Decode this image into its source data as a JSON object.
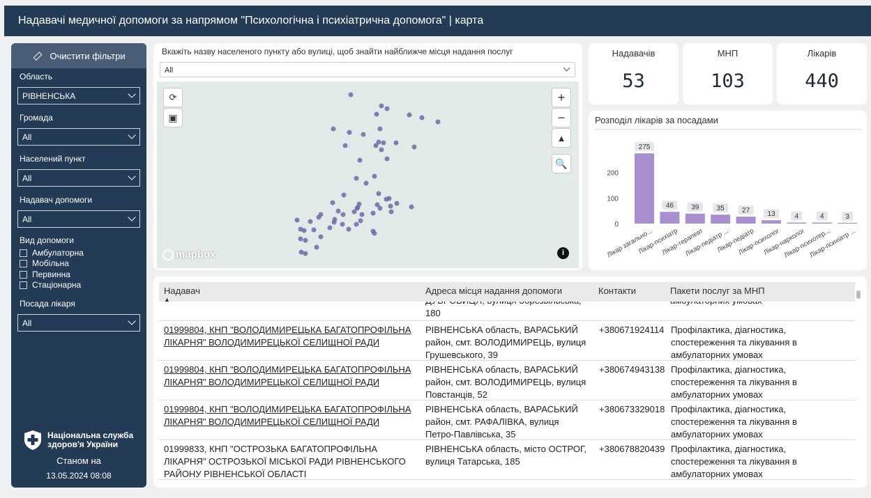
{
  "header": {
    "title": "Надавачі медичної допомоги за напрямом \"Психологічна і психіатрична допомога\" | карта"
  },
  "sidebar": {
    "clear_filters": "Очистити фільтри",
    "filters": [
      {
        "label": "Область",
        "value": "РІВНЕНСЬКА"
      },
      {
        "label": "Громада",
        "value": "All"
      },
      {
        "label": "Населений пункт",
        "value": "All"
      },
      {
        "label": "Надавач допомоги",
        "value": "All"
      }
    ],
    "care_type": {
      "label": "Вид допомоги",
      "options": [
        "Амбулаторна",
        "Мобільна",
        "Первинна",
        "Стаціонарна"
      ]
    },
    "position": {
      "label": "Посада лікаря",
      "value": "All"
    },
    "org_name_line1": "Національна служба",
    "org_name_line2": "здоров'я України",
    "as_of_label": "Станом на",
    "as_of_date": "13.05.2024 08:08"
  },
  "search": {
    "hint": "Вкажіть назву населеного пункту або вулиці, щоб знайти найближче місця надання послуг",
    "value": "All"
  },
  "map": {
    "logo_text": "mapbox"
  },
  "kpis": [
    {
      "label": "Надавачів",
      "value": "53"
    },
    {
      "label": "МНП",
      "value": "103"
    },
    {
      "label": "Лікарів",
      "value": "440"
    }
  ],
  "chart_data": {
    "type": "bar",
    "title": "Розподіл лікарів за посадами",
    "categories": [
      "Лікар загально...",
      "Лікар-психіатр",
      "Лікар-терапевт",
      "Лікар-педіатр ...",
      "Лікар-педіатр",
      "Лікар-психолог",
      "Лікар-нарколог",
      "Лікар-психотер...",
      "Лікар-психіатр ..."
    ],
    "values": [
      275,
      46,
      39,
      35,
      27,
      13,
      4,
      4,
      3
    ],
    "y_ticks": [
      0,
      100,
      200
    ],
    "ylim": [
      0,
      300
    ],
    "bar_color": "#a98fcf",
    "grid": false
  },
  "table": {
    "headers": [
      "Надавач",
      "Адреса місця надання допомоги",
      "Контакти",
      "Пакети послуг за МНП"
    ],
    "partial_row": {
      "address_line1": "ДУБРОВИЦЯ, вулиця Зорезвільська,",
      "address_line2": "180",
      "package_line": "амбулаторних умовах"
    },
    "rows": [
      {
        "provider1": "01999804, КНП \"ВОЛОДИМИРЕЦЬКА БАГАТОПРОФІЛЬНА",
        "provider2": "ЛІКАРНЯ\" ВОЛОДИМИРЕЦЬКОЇ СЕЛИЩНОЇ РАДИ",
        "provider3": "",
        "address1": "РІВНЕНСЬКА область, ВАРАСЬКИЙ",
        "address2": "район, смт. ВОЛОДИМИРЕЦЬ, вулиця",
        "address3": "Грушевського, 39",
        "contact": "+380671924114",
        "pkg1": "Профілактика, діагностика,",
        "pkg2": "спостереження та лікування в",
        "pkg3": "амбулаторних умовах",
        "link": true
      },
      {
        "provider1": "01999804, КНП \"ВОЛОДИМИРЕЦЬКА БАГАТОПРОФІЛЬНА",
        "provider2": "ЛІКАРНЯ\" ВОЛОДИМИРЕЦЬКОЇ СЕЛИЩНОЇ РАДИ",
        "provider3": "",
        "address1": "РІВНЕНСЬКА область, ВАРАСЬКИЙ",
        "address2": "район, смт. ВОЛОДИМИРЕЦЬ, вулиця",
        "address3": "Повстанців, 52",
        "contact": "+380674943138",
        "pkg1": "Профілактика, діагностика,",
        "pkg2": "спостереження та лікування в",
        "pkg3": "амбулаторних умовах",
        "link": true
      },
      {
        "provider1": "01999804, КНП \"ВОЛОДИМИРЕЦЬКА БАГАТОПРОФІЛЬНА",
        "provider2": "ЛІКАРНЯ\" ВОЛОДИМИРЕЦЬКОЇ СЕЛИЩНОЇ РАДИ",
        "provider3": "",
        "address1": "РІВНЕНСЬКА область, ВАРАСЬКИЙ",
        "address2": "район, смт. РАФАЛІВКА, вулиця",
        "address3": "Петро-Павлівська, 35",
        "contact": "+380673329018",
        "pkg1": "Профілактика, діагностика,",
        "pkg2": "спостереження та лікування в",
        "pkg3": "амбулаторних умовах",
        "link": true
      },
      {
        "provider1": "01999833, КНП \"ОСТРОЗЬКА БАГАТОПРОФІЛЬНА",
        "provider2": "ЛІКАРНЯ\" ОСТРОЗЬКОЇ МІСЬКОЇ РАДИ РІВНЕНСЬКОГО",
        "provider3": "РАЙОНУ РІВНЕНСЬКОЇ ОБЛАСТІ",
        "address1": "РІВНЕНСЬКА область, місто ОСТРОГ,",
        "address2": "вулиця Татарська, 185",
        "address3": "",
        "contact": "+380678820439",
        "pkg1": "Профілактика, діагностика,",
        "pkg2": "спостереження та лікування в",
        "pkg3": "амбулаторних умовах",
        "link": false
      }
    ]
  }
}
